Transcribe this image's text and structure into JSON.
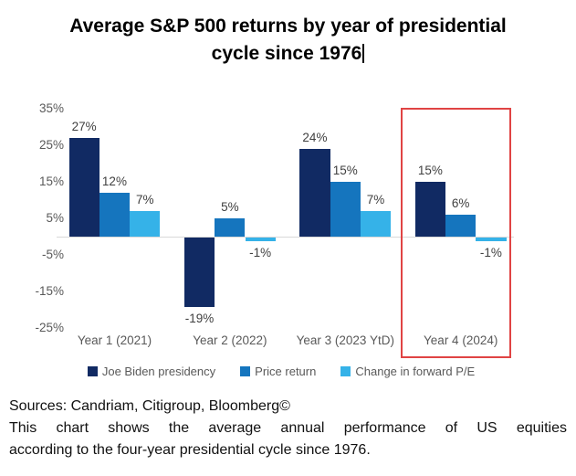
{
  "title": {
    "line1": "Average S&P 500 returns by year of presidential",
    "line2": "cycle since 1976"
  },
  "chart_data": {
    "type": "bar",
    "categories": [
      "Year 1 (2021)",
      "Year 2 (2022)",
      "Year 3 (2023 YtD)",
      "Year 4 (2024)"
    ],
    "series": [
      {
        "name": "Joe Biden presidency",
        "color": "#112a63",
        "values": [
          27,
          -19,
          24,
          15
        ]
      },
      {
        "name": "Price return",
        "color": "#1575be",
        "values": [
          12,
          5,
          15,
          6
        ]
      },
      {
        "name": "Change in forward P/E",
        "color": "#35b2e8",
        "values": [
          7,
          -1,
          7,
          -1
        ]
      }
    ],
    "value_suffix": "%",
    "y_ticks": [
      "35%",
      "25%",
      "15%",
      "5%",
      "-5%",
      "-15%",
      "-25%"
    ],
    "y_tick_values": [
      35,
      25,
      15,
      5,
      -5,
      -15,
      -25
    ],
    "ylim": [
      -25,
      35
    ],
    "grid": "baseline-only",
    "baseline_color": "#d9d9d9",
    "legend_position": "bottom",
    "highlight": {
      "category": "Year 4 (2024)",
      "color": "#e04444"
    }
  },
  "footer": {
    "sources": "Sources: Candriam, Citigroup, Bloomberg©",
    "description_line1": "This chart shows the average annual performance of US equities",
    "description_line2": "according to the four-year presidential cycle since 1976."
  }
}
